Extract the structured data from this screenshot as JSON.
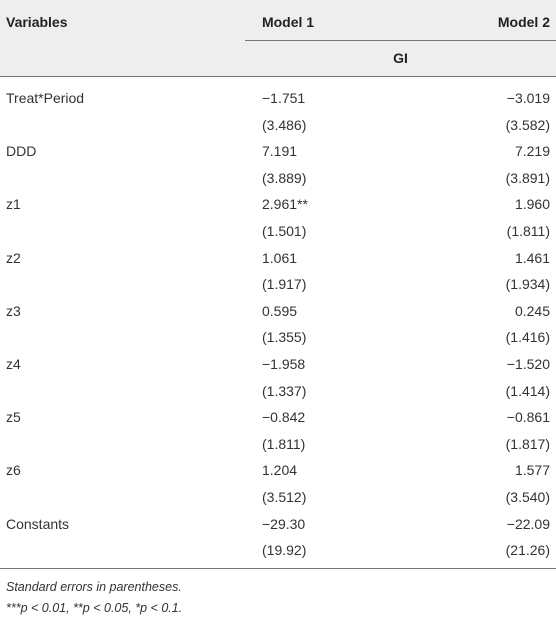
{
  "header": {
    "variables": "Variables",
    "model1": "Model 1",
    "model2": "Model 2",
    "dependent": "GI"
  },
  "rows": [
    [
      "Treat*Period",
      "−1.751",
      "−3.019"
    ],
    [
      null,
      "(3.486)",
      "(3.582)"
    ],
    [
      "DDD",
      "7.191",
      "7.219"
    ],
    [
      null,
      "(3.889)",
      "(3.891)"
    ],
    [
      "z1",
      "2.961**",
      "1.960"
    ],
    [
      null,
      "(1.501)",
      "(1.811)"
    ],
    [
      "z2",
      "1.061",
      "1.461"
    ],
    [
      null,
      "(1.917)",
      "(1.934)"
    ],
    [
      "z3",
      "0.595",
      "0.245"
    ],
    [
      null,
      "(1.355)",
      "(1.416)"
    ],
    [
      "z4",
      "−1.958",
      "−1.520"
    ],
    [
      null,
      "(1.337)",
      "(1.414)"
    ],
    [
      "z5",
      "−0.842",
      "−0.861"
    ],
    [
      null,
      "(1.811)",
      "(1.817)"
    ],
    [
      "z6",
      "1.204",
      "1.577"
    ],
    [
      null,
      "(3.512)",
      "(3.540)"
    ],
    [
      "Constants",
      "−29.30",
      "−22.09"
    ],
    [
      null,
      "(19.92)",
      "(21.26)"
    ]
  ],
  "footnotes": [
    "Standard errors in parentheses.",
    "***p < 0.01, **p < 0.05, *p < 0.1."
  ]
}
